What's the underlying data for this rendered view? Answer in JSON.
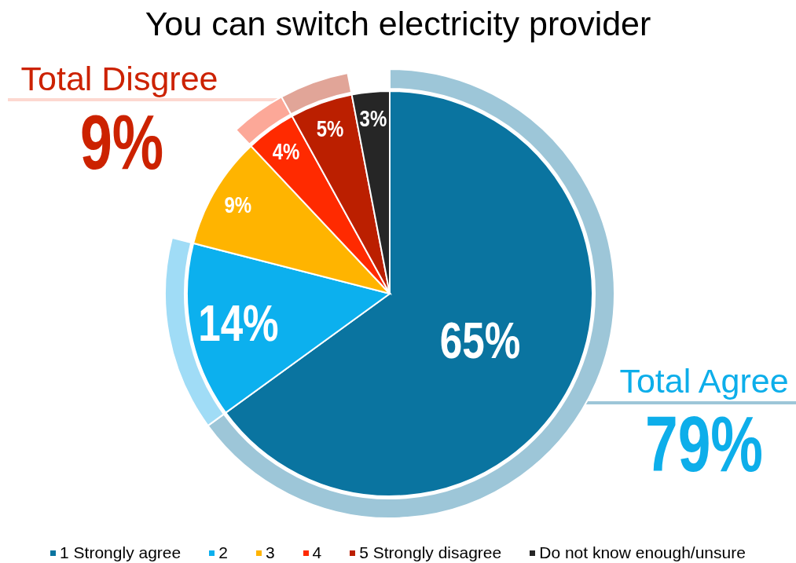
{
  "chart_data": {
    "type": "donut",
    "title": "You can switch electricity provider",
    "categories": [
      "1 Strongly agree",
      "2",
      "3",
      "4",
      "5 Strongly disagree",
      "Do not know enough/unsure"
    ],
    "series": [
      {
        "values": [
          65,
          14,
          null,
          4,
          5,
          null
        ],
        "colors": [
          "#9dc6d8",
          "#a0dcf6",
          null,
          "#fca898",
          "#e1a598",
          null
        ]
      },
      {
        "type": "pie",
        "values": [
          65,
          14,
          9,
          4,
          5,
          3
        ],
        "colors": [
          "#0a74a0",
          "#0cb0ee",
          "#ffb400",
          "#ff2a00",
          "#bb1f00",
          "#262626"
        ],
        "value_labels": [
          "65%",
          "14%",
          "9%",
          "4%",
          "5%",
          "3%"
        ]
      }
    ],
    "annotations": [
      "Total Agree",
      "79%",
      "Total Disgree",
      "9%"
    ],
    "legend": "bottom"
  }
}
